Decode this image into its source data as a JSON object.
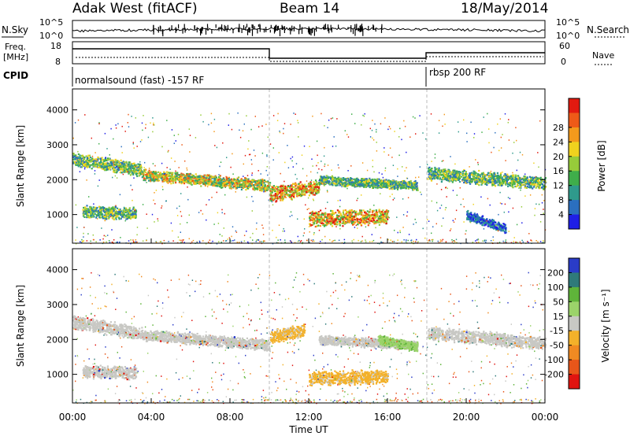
{
  "header": {
    "radar": "Adak West (fitACF)",
    "beam": "Beam 14",
    "date": "18/May/2014"
  },
  "strips": {
    "nsky_label": "N.Sky",
    "nsearch_label": "N.Search",
    "nsky_ticks": [
      "10^5",
      "10^0"
    ],
    "freq_label_1": "Freq.",
    "freq_label_2": "[MHz]",
    "freq_ticks": [
      "18",
      "8"
    ],
    "nave_label": "Nave",
    "nave_ticks": [
      "60",
      "0"
    ],
    "cpid_label": "CPID",
    "cpid_1": "normalsound (fast) -157 RF",
    "cpid_2": "rbsp 200 RF"
  },
  "chart_data": [
    {
      "type": "heatmap",
      "panel": "power",
      "ylabel": "Slant Range [km]",
      "ylim": [
        180,
        4600
      ],
      "yticks": [
        "1000",
        "2000",
        "3000",
        "4000"
      ],
      "xlim_hours": [
        0,
        24
      ],
      "colorbar": {
        "label": "Power [dB]",
        "ticks": [
          "4",
          "8",
          "12",
          "16",
          "20",
          "24",
          "28"
        ],
        "colors": [
          "#1f1fe6",
          "#2b6fbf",
          "#2f9a8c",
          "#3fae4a",
          "#97cc3a",
          "#f0d21e",
          "#f49a1c",
          "#ee5a18",
          "#e21a10"
        ]
      },
      "bands": [
        {
          "t": [
            0,
            3.5
          ],
          "r_center": [
            2600,
            2300
          ],
          "r_width": 350,
          "level": "mid"
        },
        {
          "t": [
            3.5,
            10
          ],
          "r_center": [
            2150,
            1850
          ],
          "r_width": 300,
          "level": "high"
        },
        {
          "t": [
            0.5,
            3.2
          ],
          "r_center": [
            1100,
            1050
          ],
          "r_width": 330,
          "level": "mid"
        },
        {
          "t": [
            10,
            12.5
          ],
          "r_center": [
            1600,
            1800
          ],
          "r_width": 400,
          "level": "max"
        },
        {
          "t": [
            12.5,
            17.5
          ],
          "r_center": [
            2000,
            1850
          ],
          "r_width": 250,
          "level": "mid"
        },
        {
          "t": [
            12,
            16
          ],
          "r_center": [
            900,
            950
          ],
          "r_width": 400,
          "level": "max"
        },
        {
          "t": [
            18,
            24
          ],
          "r_center": [
            2200,
            1900
          ],
          "r_width": 350,
          "level": "mid"
        },
        {
          "t": [
            20,
            22
          ],
          "r_center": [
            1000,
            600
          ],
          "r_width": 250,
          "level": "low"
        }
      ]
    },
    {
      "type": "heatmap",
      "panel": "velocity",
      "ylabel": "Slant Range [km]",
      "ylim": [
        180,
        4600
      ],
      "yticks": [
        "1000",
        "2000",
        "3000",
        "4000"
      ],
      "xlim_hours": [
        0,
        24
      ],
      "xticks": [
        "00:00",
        "04:00",
        "08:00",
        "12:00",
        "16:00",
        "20:00",
        "00:00"
      ],
      "xlabel": "Time UT",
      "colorbar": {
        "label": "Velocity [m s⁻¹]",
        "ticks": [
          "200",
          "100",
          "50",
          "15",
          "-15",
          "-50",
          "-100",
          "-200"
        ],
        "colors": [
          "#2a3cc8",
          "#2f7a7a",
          "#5fb43a",
          "#9bd36a",
          "#c8c8c4",
          "#f3b12a",
          "#f08a22",
          "#e8561a",
          "#e01410"
        ]
      },
      "bands": [
        {
          "t": [
            0,
            3.5
          ],
          "r_center": [
            2500,
            2200
          ],
          "r_width": 350,
          "level": "gray"
        },
        {
          "t": [
            3.5,
            10
          ],
          "r_center": [
            2150,
            1850
          ],
          "r_width": 300,
          "level": "gray"
        },
        {
          "t": [
            0.5,
            3.2
          ],
          "r_center": [
            1100,
            1050
          ],
          "r_width": 330,
          "level": "gray"
        },
        {
          "t": [
            10,
            11.8
          ],
          "r_center": [
            2100,
            2300
          ],
          "r_width": 350,
          "level": "orange"
        },
        {
          "t": [
            12,
            16
          ],
          "r_center": [
            900,
            950
          ],
          "r_width": 380,
          "level": "orange"
        },
        {
          "t": [
            12.5,
            17.5
          ],
          "r_center": [
            2000,
            1850
          ],
          "r_width": 250,
          "level": "gray"
        },
        {
          "t": [
            15.5,
            17.5
          ],
          "r_center": [
            2000,
            1800
          ],
          "r_width": 250,
          "level": "green"
        },
        {
          "t": [
            18,
            24
          ],
          "r_center": [
            2200,
            1900
          ],
          "r_width": 350,
          "level": "gray"
        }
      ]
    }
  ]
}
